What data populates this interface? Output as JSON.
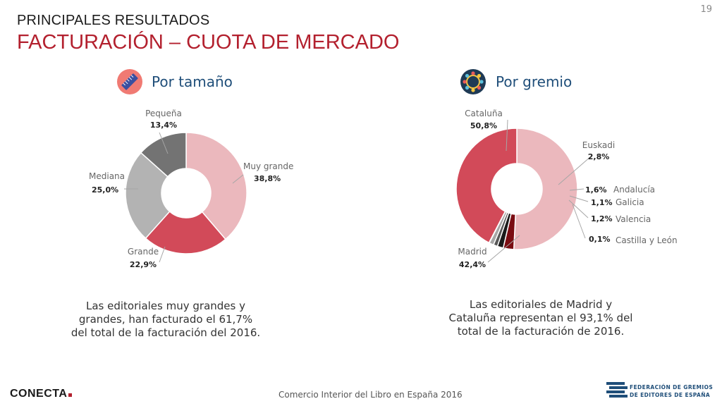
{
  "page_number": "19",
  "header": {
    "subtitle": "PRINCIPALES RESULTADOS",
    "title": "FACTURACIÓN – CUOTA DE MERCADO"
  },
  "sections": {
    "size": {
      "title": "Por tamaño",
      "icon": "ruler-icon"
    },
    "guild": {
      "title": "Por gremio",
      "icon": "people-circle-icon"
    }
  },
  "chart_data": [
    {
      "type": "pie",
      "donut": true,
      "categories": [
        "Muy grande",
        "Grande",
        "Mediana",
        "Pequeña"
      ],
      "values": [
        38.8,
        22.9,
        25.0,
        13.4
      ],
      "value_labels": [
        "38,8%",
        "22,9%",
        "25,0%",
        "13,4%"
      ],
      "colors": [
        "#ebb8bd",
        "#d24a59",
        "#b3b3b3",
        "#737373"
      ]
    },
    {
      "type": "pie",
      "donut": true,
      "categories": [
        "Cataluña",
        "Euskadi",
        "Andalucía",
        "Galicia",
        "Valencia",
        "Castilla y León",
        "Madrid"
      ],
      "values": [
        50.8,
        2.8,
        1.6,
        1.1,
        1.2,
        0.1,
        42.4
      ],
      "value_labels": [
        "50,8%",
        "2,8%",
        "1,6%",
        "1,1%",
        "1,2%",
        "0,1%",
        "42,4%"
      ],
      "colors": [
        "#ebb8bd",
        "#7a0c12",
        "#1a1a1a",
        "#595959",
        "#a6a6a6",
        "#d9d9d9",
        "#d24a59"
      ]
    }
  ],
  "captions": {
    "size": "Las editoriales muy grandes y grandes, han facturado el 61,7% del total de la facturación del 2016.",
    "guild": "Las editoriales de Madrid y Cataluña representan el 93,1% del total de la facturación de 2016."
  },
  "footer": {
    "text": "Comercio Interior del Libro en España 2016",
    "brand": "CONECTA",
    "federation_line1": "FEDERACIÓN DE GREMIOS",
    "federation_line2": "DE EDITORES DE ESPAÑA"
  }
}
